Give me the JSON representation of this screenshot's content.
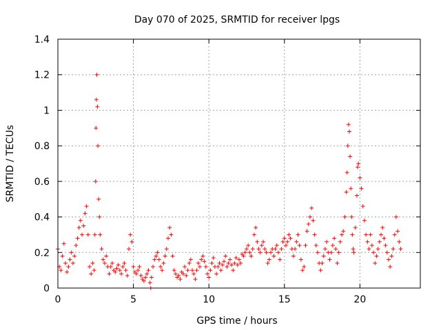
{
  "chart_data": {
    "type": "scatter",
    "title": "Day 070 of 2025, SRMTID for receiver lpgs",
    "xlabel": "GPS time / hours",
    "ylabel": "SRMTID / TECUs",
    "xlim": [
      0,
      24
    ],
    "ylim": [
      0,
      1.4
    ],
    "xticks": [
      0,
      5,
      10,
      15,
      20
    ],
    "xtick_labels": [
      "0",
      "5",
      "10",
      "15",
      "20"
    ],
    "yticks": [
      0,
      0.2,
      0.4,
      0.6,
      0.8,
      1,
      1.2,
      1.4
    ],
    "ytick_labels": [
      "0",
      "0.2",
      "0.4",
      "0.6",
      "0.8",
      "1",
      "1.2",
      "1.4"
    ],
    "grid": true,
    "marker": "plus",
    "color": "#ff0000",
    "series": [
      {
        "name": "SRMTID",
        "points": [
          [
            0.0,
            0.22
          ],
          [
            0.1,
            0.12
          ],
          [
            0.2,
            0.1
          ],
          [
            0.3,
            0.18
          ],
          [
            0.4,
            0.25
          ],
          [
            0.5,
            0.14
          ],
          [
            0.6,
            0.09
          ],
          [
            0.7,
            0.12
          ],
          [
            0.8,
            0.16
          ],
          [
            0.9,
            0.2
          ],
          [
            1.0,
            0.14
          ],
          [
            1.1,
            0.18
          ],
          [
            1.2,
            0.24
          ],
          [
            1.3,
            0.28
          ],
          [
            1.4,
            0.34
          ],
          [
            1.5,
            0.38
          ],
          [
            1.6,
            0.3
          ],
          [
            1.7,
            0.35
          ],
          [
            1.8,
            0.42
          ],
          [
            1.9,
            0.46
          ],
          [
            2.0,
            0.3
          ],
          [
            2.1,
            0.12
          ],
          [
            2.2,
            0.08
          ],
          [
            2.3,
            0.14
          ],
          [
            2.4,
            0.1
          ],
          [
            2.45,
            0.3
          ],
          [
            2.5,
            0.6
          ],
          [
            2.52,
            0.9
          ],
          [
            2.55,
            1.06
          ],
          [
            2.58,
            1.2
          ],
          [
            2.62,
            1.02
          ],
          [
            2.65,
            0.8
          ],
          [
            2.7,
            0.5
          ],
          [
            2.75,
            0.4
          ],
          [
            2.8,
            0.3
          ],
          [
            2.9,
            0.22
          ],
          [
            3.0,
            0.16
          ],
          [
            3.1,
            0.14
          ],
          [
            3.2,
            0.18
          ],
          [
            3.3,
            0.12
          ],
          [
            3.4,
            0.08
          ],
          [
            3.5,
            0.12
          ],
          [
            3.6,
            0.14
          ],
          [
            3.7,
            0.1
          ],
          [
            3.8,
            0.09
          ],
          [
            3.9,
            0.11
          ],
          [
            4.0,
            0.13
          ],
          [
            4.1,
            0.1
          ],
          [
            4.2,
            0.08
          ],
          [
            4.3,
            0.12
          ],
          [
            4.4,
            0.14
          ],
          [
            4.5,
            0.1
          ],
          [
            4.6,
            0.07
          ],
          [
            4.7,
            0.22
          ],
          [
            4.8,
            0.3
          ],
          [
            4.9,
            0.26
          ],
          [
            5.0,
            0.12
          ],
          [
            5.1,
            0.09
          ],
          [
            5.2,
            0.08
          ],
          [
            5.3,
            0.1
          ],
          [
            5.4,
            0.12
          ],
          [
            5.5,
            0.07
          ],
          [
            5.6,
            0.05
          ],
          [
            5.7,
            0.04
          ],
          [
            5.8,
            0.06
          ],
          [
            5.9,
            0.08
          ],
          [
            6.0,
            0.1
          ],
          [
            6.1,
            0.03
          ],
          [
            6.15,
            0.0
          ],
          [
            6.2,
            0.06
          ],
          [
            6.3,
            0.12
          ],
          [
            6.4,
            0.16
          ],
          [
            6.5,
            0.18
          ],
          [
            6.6,
            0.2
          ],
          [
            6.7,
            0.16
          ],
          [
            6.8,
            0.12
          ],
          [
            6.9,
            0.1
          ],
          [
            7.0,
            0.14
          ],
          [
            7.1,
            0.18
          ],
          [
            7.2,
            0.22
          ],
          [
            7.3,
            0.28
          ],
          [
            7.4,
            0.34
          ],
          [
            7.5,
            0.3
          ],
          [
            7.6,
            0.18
          ],
          [
            7.7,
            0.1
          ],
          [
            7.8,
            0.08
          ],
          [
            7.9,
            0.06
          ],
          [
            8.0,
            0.07
          ],
          [
            8.1,
            0.05
          ],
          [
            8.2,
            0.09
          ],
          [
            8.3,
            0.08
          ],
          [
            8.4,
            0.12
          ],
          [
            8.5,
            0.07
          ],
          [
            8.6,
            0.1
          ],
          [
            8.7,
            0.14
          ],
          [
            8.8,
            0.16
          ],
          [
            8.9,
            0.1
          ],
          [
            9.0,
            0.08
          ],
          [
            9.1,
            0.05
          ],
          [
            9.2,
            0.1
          ],
          [
            9.3,
            0.14
          ],
          [
            9.4,
            0.12
          ],
          [
            9.5,
            0.16
          ],
          [
            9.6,
            0.18
          ],
          [
            9.7,
            0.15
          ],
          [
            9.8,
            0.12
          ],
          [
            9.9,
            0.08
          ],
          [
            10.0,
            0.06
          ],
          [
            10.1,
            0.1
          ],
          [
            10.2,
            0.14
          ],
          [
            10.3,
            0.17
          ],
          [
            10.4,
            0.12
          ],
          [
            10.5,
            0.08
          ],
          [
            10.6,
            0.12
          ],
          [
            10.7,
            0.14
          ],
          [
            10.8,
            0.1
          ],
          [
            10.9,
            0.13
          ],
          [
            11.0,
            0.15
          ],
          [
            11.1,
            0.18
          ],
          [
            11.2,
            0.12
          ],
          [
            11.3,
            0.14
          ],
          [
            11.4,
            0.16
          ],
          [
            11.5,
            0.13
          ],
          [
            11.6,
            0.1
          ],
          [
            11.7,
            0.14
          ],
          [
            11.8,
            0.17
          ],
          [
            11.9,
            0.13
          ],
          [
            12.0,
            0.16
          ],
          [
            12.1,
            0.14
          ],
          [
            12.2,
            0.19
          ],
          [
            12.3,
            0.18
          ],
          [
            12.4,
            0.2
          ],
          [
            12.5,
            0.22
          ],
          [
            12.6,
            0.24
          ],
          [
            12.7,
            0.2
          ],
          [
            12.8,
            0.18
          ],
          [
            12.9,
            0.22
          ],
          [
            13.0,
            0.3
          ],
          [
            13.1,
            0.34
          ],
          [
            13.2,
            0.26
          ],
          [
            13.3,
            0.22
          ],
          [
            13.4,
            0.2
          ],
          [
            13.5,
            0.24
          ],
          [
            13.6,
            0.26
          ],
          [
            13.7,
            0.22
          ],
          [
            13.8,
            0.2
          ],
          [
            13.9,
            0.14
          ],
          [
            14.0,
            0.16
          ],
          [
            14.1,
            0.2
          ],
          [
            14.2,
            0.22
          ],
          [
            14.3,
            0.18
          ],
          [
            14.4,
            0.22
          ],
          [
            14.5,
            0.24
          ],
          [
            14.6,
            0.2
          ],
          [
            14.7,
            0.16
          ],
          [
            14.8,
            0.22
          ],
          [
            14.9,
            0.26
          ],
          [
            15.0,
            0.28
          ],
          [
            15.1,
            0.24
          ],
          [
            15.2,
            0.26
          ],
          [
            15.3,
            0.3
          ],
          [
            15.4,
            0.28
          ],
          [
            15.5,
            0.22
          ],
          [
            15.6,
            0.18
          ],
          [
            15.7,
            0.22
          ],
          [
            15.8,
            0.26
          ],
          [
            15.9,
            0.3
          ],
          [
            16.0,
            0.24
          ],
          [
            16.1,
            0.16
          ],
          [
            16.2,
            0.1
          ],
          [
            16.3,
            0.12
          ],
          [
            16.4,
            0.24
          ],
          [
            16.5,
            0.32
          ],
          [
            16.6,
            0.36
          ],
          [
            16.7,
            0.4
          ],
          [
            16.8,
            0.45
          ],
          [
            16.9,
            0.38
          ],
          [
            17.0,
            0.3
          ],
          [
            17.1,
            0.24
          ],
          [
            17.2,
            0.2
          ],
          [
            17.3,
            0.14
          ],
          [
            17.4,
            0.1
          ],
          [
            17.5,
            0.14
          ],
          [
            17.6,
            0.18
          ],
          [
            17.7,
            0.22
          ],
          [
            17.8,
            0.26
          ],
          [
            17.9,
            0.2
          ],
          [
            18.0,
            0.16
          ],
          [
            18.1,
            0.2
          ],
          [
            18.2,
            0.24
          ],
          [
            18.3,
            0.28
          ],
          [
            18.4,
            0.22
          ],
          [
            18.5,
            0.14
          ],
          [
            18.6,
            0.2
          ],
          [
            18.7,
            0.26
          ],
          [
            18.8,
            0.3
          ],
          [
            18.9,
            0.32
          ],
          [
            19.0,
            0.4
          ],
          [
            19.1,
            0.54
          ],
          [
            19.15,
            0.65
          ],
          [
            19.2,
            0.8
          ],
          [
            19.25,
            0.92
          ],
          [
            19.3,
            0.88
          ],
          [
            19.35,
            0.74
          ],
          [
            19.4,
            0.56
          ],
          [
            19.45,
            0.4
          ],
          [
            19.5,
            0.3
          ],
          [
            19.55,
            0.22
          ],
          [
            19.6,
            0.2
          ],
          [
            19.7,
            0.34
          ],
          [
            19.8,
            0.52
          ],
          [
            19.85,
            0.68
          ],
          [
            19.9,
            0.7
          ],
          [
            20.0,
            0.62
          ],
          [
            20.1,
            0.56
          ],
          [
            20.2,
            0.46
          ],
          [
            20.3,
            0.38
          ],
          [
            20.4,
            0.3
          ],
          [
            20.5,
            0.26
          ],
          [
            20.6,
            0.22
          ],
          [
            20.7,
            0.3
          ],
          [
            20.8,
            0.24
          ],
          [
            20.9,
            0.2
          ],
          [
            21.0,
            0.14
          ],
          [
            21.1,
            0.18
          ],
          [
            21.2,
            0.22
          ],
          [
            21.3,
            0.26
          ],
          [
            21.4,
            0.3
          ],
          [
            21.5,
            0.34
          ],
          [
            21.6,
            0.28
          ],
          [
            21.7,
            0.24
          ],
          [
            21.8,
            0.2
          ],
          [
            21.9,
            0.16
          ],
          [
            22.0,
            0.12
          ],
          [
            22.1,
            0.18
          ],
          [
            22.2,
            0.22
          ],
          [
            22.3,
            0.3
          ],
          [
            22.4,
            0.4
          ],
          [
            22.5,
            0.32
          ],
          [
            22.6,
            0.26
          ],
          [
            22.7,
            0.22
          ]
        ]
      }
    ]
  }
}
